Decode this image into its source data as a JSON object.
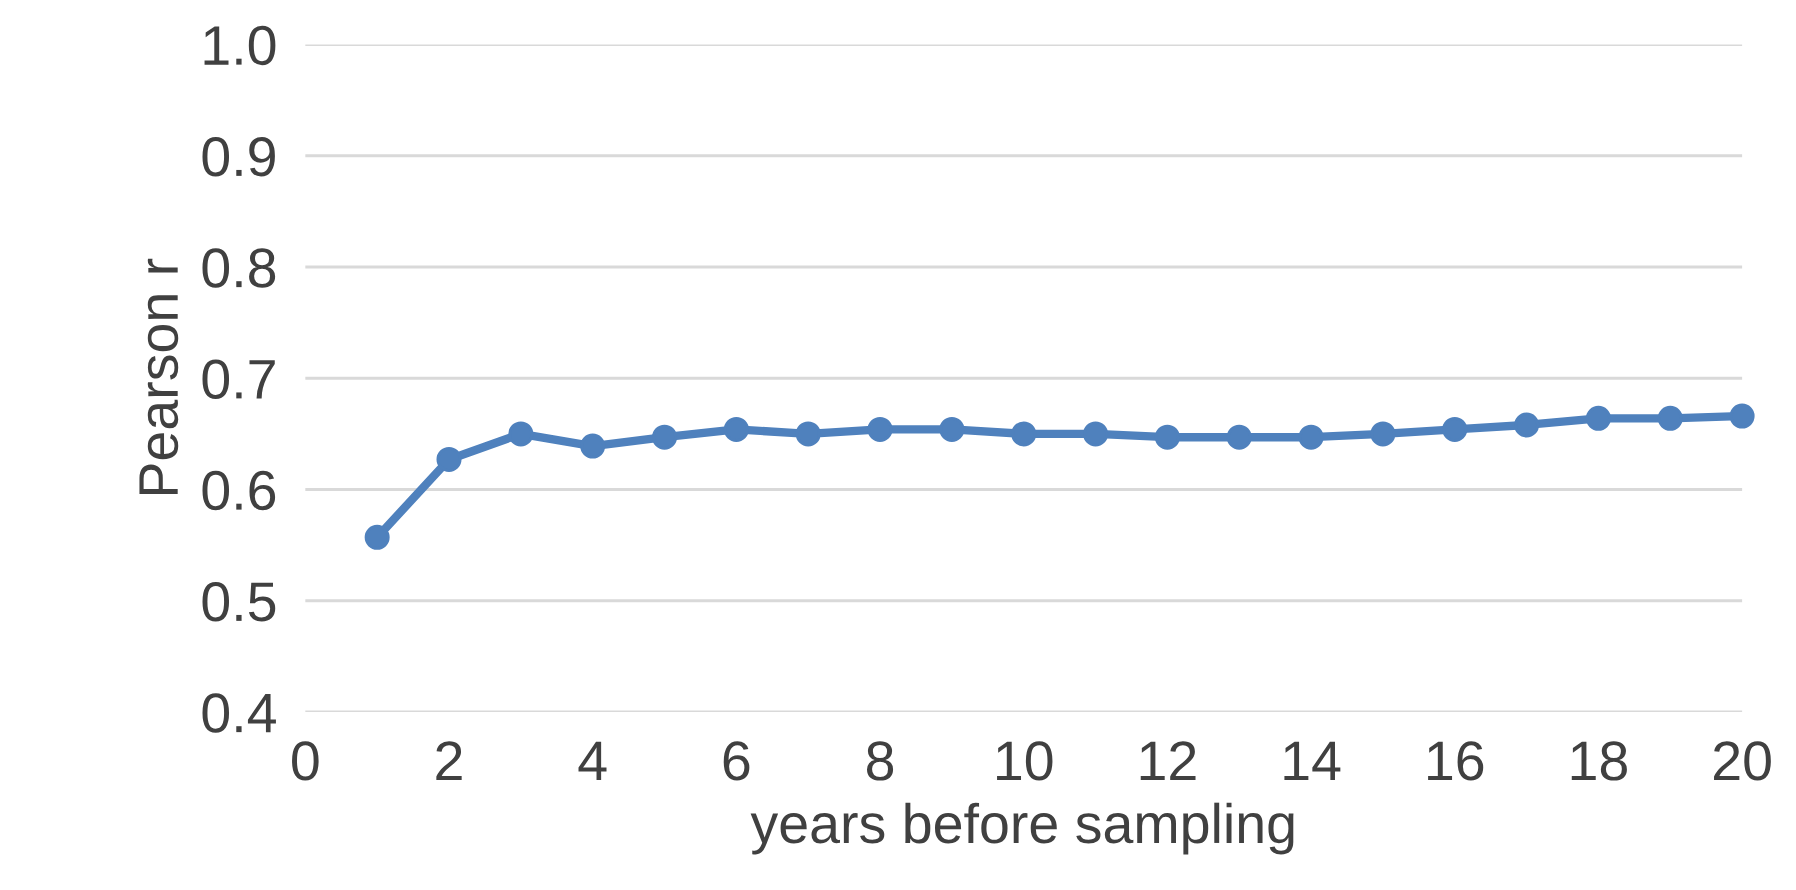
{
  "chart_data": {
    "type": "line",
    "xlabel": "years before sampling",
    "ylabel": "Pearson r",
    "x": [
      1,
      2,
      3,
      4,
      5,
      6,
      7,
      8,
      9,
      10,
      11,
      12,
      13,
      14,
      15,
      16,
      17,
      18,
      19,
      20
    ],
    "series": [
      {
        "color": "#4f81bd",
        "values": [
          0.557,
          0.627,
          0.65,
          0.639,
          0.647,
          0.654,
          0.65,
          0.654,
          0.654,
          0.65,
          0.65,
          0.647,
          0.647,
          0.647,
          0.65,
          0.654,
          0.658,
          0.664,
          0.664,
          0.666
        ]
      }
    ],
    "xlim": [
      0,
      20
    ],
    "xticks": [
      0,
      2,
      4,
      6,
      8,
      10,
      12,
      14,
      16,
      18,
      20
    ],
    "ylim": [
      0.4,
      1.0
    ],
    "yticks": [
      {
        "value": 0.4,
        "label": "0.4"
      },
      {
        "value": 0.5,
        "label": "0.5"
      },
      {
        "value": 0.6,
        "label": "0.6"
      },
      {
        "value": 0.7,
        "label": "0.7"
      },
      {
        "value": 0.8,
        "label": "0.8"
      },
      {
        "value": 0.9,
        "label": "0.9"
      },
      {
        "value": 1.0,
        "label": "1.0"
      }
    ],
    "grid": "y",
    "marker": "circle",
    "line_style": "solid"
  }
}
